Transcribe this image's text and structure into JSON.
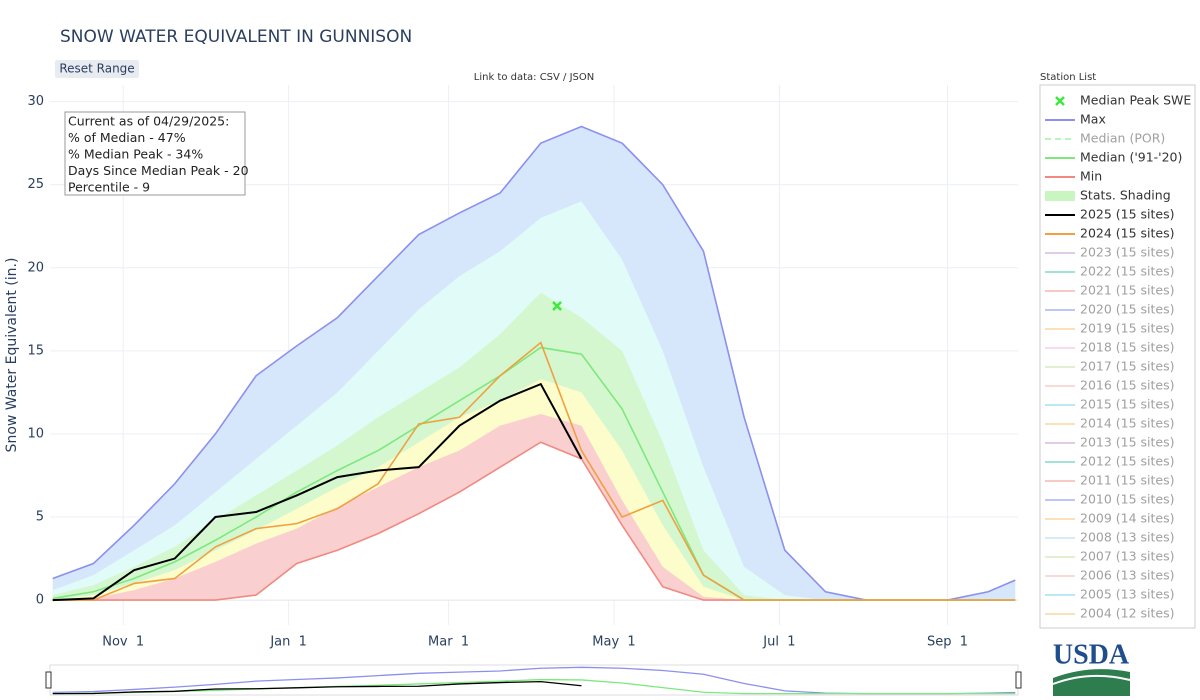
{
  "chart_data": {
    "type": "line",
    "title": "SNOW WATER EQUIVALENT IN GUNNISON",
    "button": "Reset Range",
    "data_link": "Link to data: CSV / JSON",
    "legend_title": "Station List",
    "logo": "USDA",
    "y_label": "Snow Water Equivalent (in.)",
    "annotation": [
      "Current as of 04/29/2025:",
      "% of Median - 47%",
      "% Median Peak - 34%",
      "Days Since Median Peak - 20",
      "Percentile - 9"
    ],
    "x": [
      5,
      20,
      35,
      50,
      65,
      80,
      95,
      110,
      125,
      140,
      155,
      170,
      185,
      200,
      215,
      230,
      245,
      260,
      275,
      290,
      305,
      320,
      335,
      350,
      360
    ],
    "xlim": [
      4,
      361
    ],
    "xticks": [
      {
        "value": 31,
        "label": "Nov  1"
      },
      {
        "value": 92,
        "label": "Jan  1"
      },
      {
        "value": 151,
        "label": "Mar  1"
      },
      {
        "value": 212,
        "label": "May  1"
      },
      {
        "value": 273,
        "label": "Jul  1"
      },
      {
        "value": 335,
        "label": "Sep  1"
      }
    ],
    "ylim": [
      -1.5,
      31
    ],
    "yticks": [
      0,
      5,
      10,
      15,
      20,
      25,
      30
    ],
    "grid": true,
    "series": [
      {
        "name": "Max",
        "color": "#8b90ee",
        "values": [
          1.3,
          2.2,
          4.5,
          7,
          10,
          13.5,
          15.3,
          17,
          19.5,
          22,
          23.3,
          24.5,
          27.5,
          28.5,
          27.5,
          25,
          21,
          11,
          3,
          0.5,
          0,
          0,
          0,
          0.5,
          1.2
        ]
      },
      {
        "name": "Median ('91-'20)",
        "color": "#7ee87e",
        "values": [
          0.1,
          0.5,
          1.3,
          2.3,
          3.6,
          5,
          6.5,
          7.8,
          9,
          10.5,
          12,
          13.5,
          15.2,
          14.8,
          11.5,
          6.5,
          1.5,
          0,
          0,
          0,
          0,
          0,
          0,
          0,
          0
        ]
      },
      {
        "name": "Min",
        "color": "#f08a80",
        "values": [
          0,
          0,
          0,
          0,
          0,
          0.3,
          2.2,
          3,
          4,
          5.2,
          6.5,
          8,
          9.5,
          8.5,
          4.5,
          0.8,
          0,
          0,
          0,
          0,
          0,
          0,
          0,
          0,
          0
        ]
      },
      {
        "name": "2025 (15 sites)",
        "color": "#000000",
        "values": [
          0,
          0.1,
          1.8,
          2.5,
          5,
          5.3,
          6.3,
          7.4,
          7.8,
          8,
          10.5,
          12,
          13,
          8.5,
          null,
          null,
          null,
          null,
          null,
          null,
          null,
          null,
          null,
          null,
          null
        ]
      },
      {
        "name": "2024 (15 sites)",
        "color": "#f0a040",
        "values": [
          0,
          0,
          1,
          1.3,
          3.2,
          4.3,
          4.6,
          5.5,
          7,
          10.6,
          11,
          13.5,
          15.5,
          9,
          5,
          6,
          1.5,
          0,
          0,
          0,
          0,
          0,
          0,
          0,
          0
        ]
      }
    ],
    "shading": {
      "name": "Stats. Shading",
      "color": "#c8f5c0",
      "fills": [
        "#d6e6fb",
        "#e0fbf8",
        "#d4f7d0",
        "#fdfccb",
        "#f9cfcf",
        "#ffffff"
      ],
      "bands": [
        [
          0.6,
          1.5,
          3,
          4.5,
          6.5,
          8.5,
          10.5,
          12.5,
          15,
          17.5,
          19.5,
          21,
          23,
          24,
          20.5,
          15,
          8,
          2,
          0.3,
          0,
          0,
          0,
          0,
          0,
          0
        ],
        [
          0.3,
          0.9,
          2,
          3.2,
          4.8,
          6.3,
          7.8,
          9.3,
          11,
          12.5,
          14,
          16,
          18.5,
          17,
          15,
          9.5,
          3,
          0.3,
          0,
          0,
          0,
          0,
          0,
          0,
          0
        ],
        [
          0,
          0.3,
          1,
          1.8,
          3,
          4.2,
          5.5,
          6.8,
          8,
          9.5,
          11,
          12,
          13.3,
          12.5,
          9,
          4.5,
          0.8,
          0,
          0,
          0,
          0,
          0,
          0,
          0,
          0
        ],
        [
          0,
          0.1,
          0.6,
          1.3,
          2.3,
          3.4,
          4.3,
          5.6,
          6.8,
          8,
          9,
          10.5,
          11.2,
          10.5,
          6,
          2,
          0.2,
          0,
          0,
          0,
          0,
          0,
          0,
          0,
          0
        ]
      ]
    },
    "peak": {
      "name": "Median Peak SWE",
      "color": "#3ee83e",
      "x": 191,
      "y": 17.7
    },
    "hidden_series": [
      {
        "name": "Median (POR)",
        "color": "#7ee87e"
      },
      {
        "name": "2023 (15 sites)",
        "color": "#c39bd3"
      },
      {
        "name": "2022 (15 sites)",
        "color": "#48c9b0"
      },
      {
        "name": "2021 (15 sites)",
        "color": "#f1948a"
      },
      {
        "name": "2020 (15 sites)",
        "color": "#7f8ff4"
      },
      {
        "name": "2019 (15 sites)",
        "color": "#f8c471"
      },
      {
        "name": "2018 (15 sites)",
        "color": "#f5b7e6"
      },
      {
        "name": "2017 (15 sites)",
        "color": "#c5e1a5"
      },
      {
        "name": "2016 (15 sites)",
        "color": "#f5b7b1"
      },
      {
        "name": "2015 (15 sites)",
        "color": "#76d7ea"
      },
      {
        "name": "2014 (15 sites)",
        "color": "#f8c471"
      },
      {
        "name": "2013 (15 sites)",
        "color": "#c39bd3"
      },
      {
        "name": "2012 (15 sites)",
        "color": "#48c9b0"
      },
      {
        "name": "2011 (15 sites)",
        "color": "#f1948a"
      },
      {
        "name": "2010 (15 sites)",
        "color": "#7f8ff4"
      },
      {
        "name": "2009 (14 sites)",
        "color": "#f8c471"
      },
      {
        "name": "2008 (13 sites)",
        "color": "#aed6f1"
      },
      {
        "name": "2007 (13 sites)",
        "color": "#c5e1a5"
      },
      {
        "name": "2006 (13 sites)",
        "color": "#f5b7b1"
      },
      {
        "name": "2005 (13 sites)",
        "color": "#76d7ea"
      },
      {
        "name": "2004 (12 sites)",
        "color": "#f8c471"
      }
    ]
  }
}
